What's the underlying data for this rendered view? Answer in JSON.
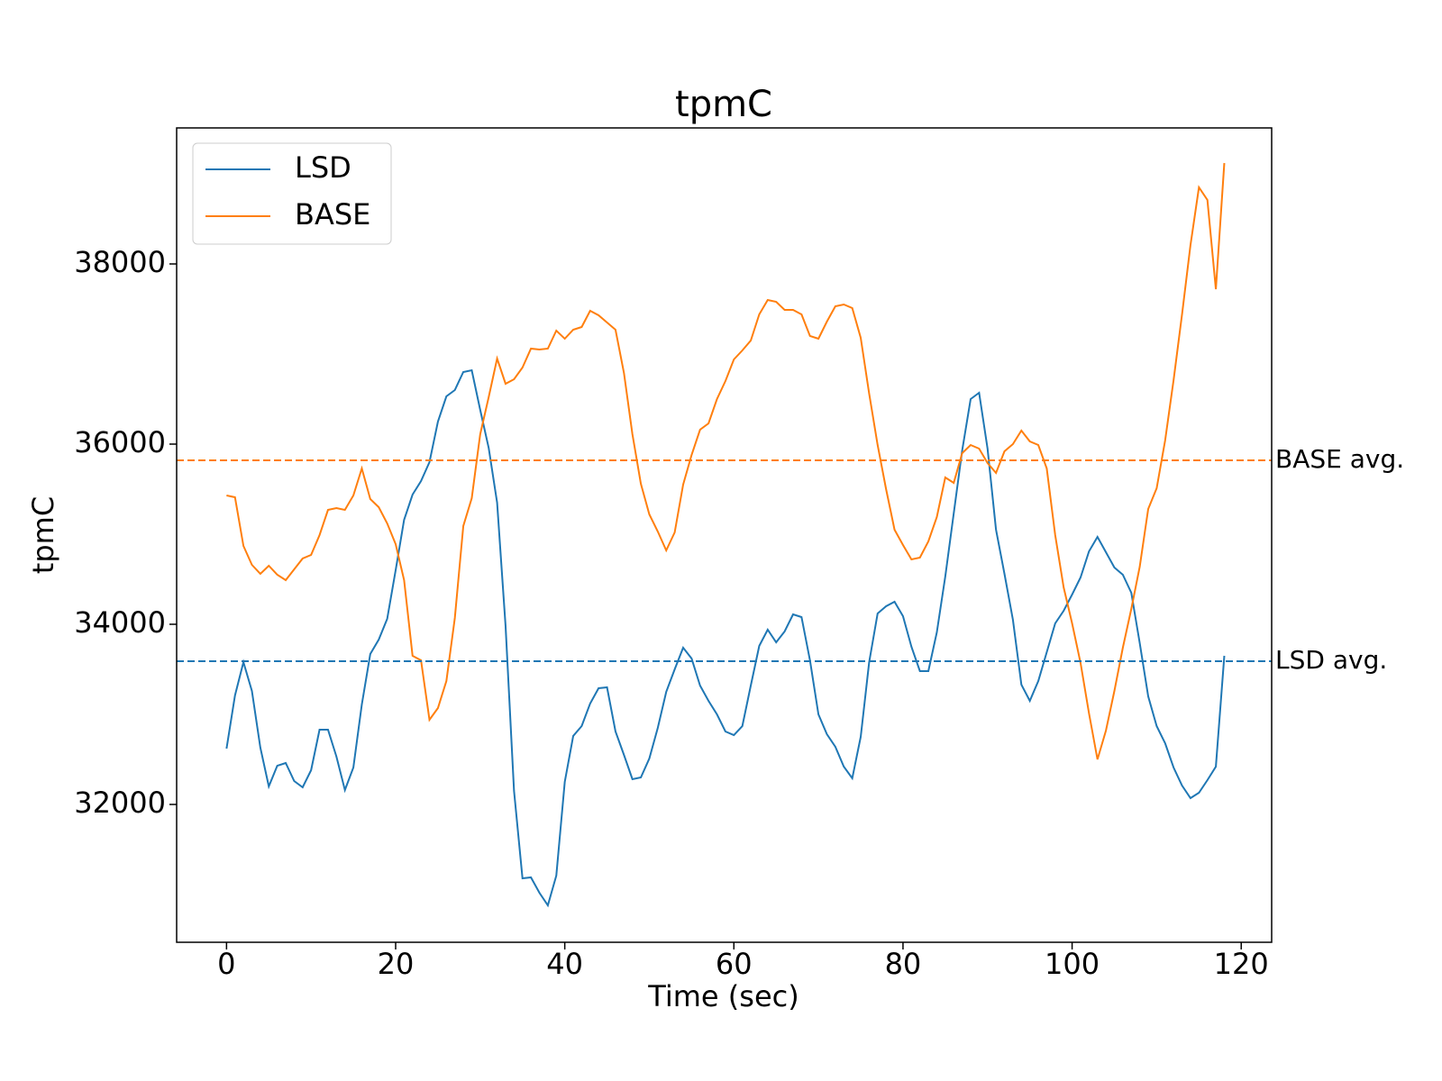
{
  "chart_data": {
    "type": "line",
    "title": "tpmC",
    "x_label": "Time (sec)",
    "y_label": "tpmC",
    "x": [
      0,
      1,
      2,
      3,
      4,
      5,
      6,
      7,
      8,
      9,
      10,
      11,
      12,
      13,
      14,
      15,
      16,
      17,
      18,
      19,
      20,
      21,
      22,
      23,
      24,
      25,
      26,
      27,
      28,
      29,
      30,
      31,
      32,
      33,
      34,
      35,
      36,
      37,
      38,
      39,
      40,
      41,
      42,
      43,
      44,
      45,
      46,
      47,
      48,
      49,
      50,
      51,
      52,
      53,
      54,
      55,
      56,
      57,
      58,
      59,
      60,
      61,
      62,
      63,
      64,
      65,
      66,
      67,
      68,
      69,
      70,
      71,
      72,
      73,
      74,
      75,
      76,
      77,
      78,
      79,
      80,
      81,
      82,
      83,
      84,
      85,
      86,
      87,
      88,
      89,
      90,
      91,
      92,
      93,
      94,
      95,
      96,
      97,
      98,
      99,
      100,
      101,
      102,
      103,
      104,
      105,
      106,
      107,
      108,
      109,
      110,
      111,
      112,
      113,
      114,
      115,
      116,
      117,
      118
    ],
    "series": [
      {
        "name": "LSD",
        "color": "#1f77b4",
        "values": [
          32620,
          33210,
          33580,
          33260,
          32630,
          32200,
          32430,
          32460,
          32260,
          32190,
          32380,
          32830,
          32830,
          32530,
          32160,
          32410,
          33110,
          33670,
          33830,
          34060,
          34600,
          35160,
          35440,
          35590,
          35800,
          36250,
          36530,
          36600,
          36800,
          36820,
          36380,
          35960,
          35350,
          33980,
          32150,
          31180,
          31190,
          31020,
          30880,
          31210,
          32250,
          32760,
          32870,
          33120,
          33290,
          33300,
          32810,
          32550,
          32280,
          32300,
          32510,
          32850,
          33250,
          33500,
          33740,
          33620,
          33320,
          33150,
          33000,
          32810,
          32770,
          32870,
          33320,
          33760,
          33940,
          33800,
          33920,
          34110,
          34080,
          33600,
          33000,
          32780,
          32640,
          32420,
          32290,
          32750,
          33580,
          34120,
          34200,
          34250,
          34090,
          33750,
          33480,
          33480,
          33910,
          34530,
          35230,
          35930,
          36500,
          36570,
          35950,
          35050,
          34560,
          34050,
          33330,
          33150,
          33370,
          33690,
          34010,
          34150,
          34330,
          34520,
          34810,
          34970,
          34800,
          34630,
          34550,
          34350,
          33790,
          33200,
          32870,
          32680,
          32410,
          32210,
          32070,
          32130,
          32270,
          32420,
          33650
        ]
      },
      {
        "name": "BASE",
        "color": "#ff7f0e",
        "values": [
          35430,
          35410,
          34870,
          34660,
          34560,
          34650,
          34550,
          34490,
          34610,
          34730,
          34770,
          34990,
          35270,
          35290,
          35270,
          35430,
          35730,
          35390,
          35300,
          35120,
          34890,
          34490,
          33650,
          33600,
          32940,
          33070,
          33370,
          34070,
          35090,
          35400,
          36110,
          36520,
          36950,
          36670,
          36720,
          36850,
          37060,
          37050,
          37060,
          37260,
          37170,
          37270,
          37300,
          37480,
          37430,
          37350,
          37270,
          36790,
          36110,
          35560,
          35220,
          35030,
          34820,
          35020,
          35550,
          35880,
          36160,
          36230,
          36500,
          36700,
          36940,
          37040,
          37150,
          37440,
          37600,
          37580,
          37490,
          37490,
          37440,
          37200,
          37170,
          37360,
          37530,
          37550,
          37510,
          37180,
          36560,
          35990,
          35500,
          35050,
          34880,
          34720,
          34740,
          34920,
          35190,
          35630,
          35570,
          35900,
          35990,
          35950,
          35790,
          35680,
          35920,
          36000,
          36150,
          36030,
          35990,
          35730,
          34990,
          34410,
          34010,
          33570,
          33010,
          32500,
          32820,
          33260,
          33740,
          34170,
          34640,
          35280,
          35510,
          36040,
          36710,
          37440,
          38210,
          38850,
          38710,
          37720,
          39120
        ]
      }
    ],
    "reference_lines": [
      {
        "label": "BASE avg.",
        "value": 35820,
        "color": "#ff7f0e"
      },
      {
        "label": "LSD avg.",
        "value": 33590,
        "color": "#1f77b4"
      }
    ],
    "xlim": [
      -5.9,
      123.6
    ],
    "ylim": [
      30470,
      39510
    ],
    "xticks": [
      0,
      20,
      40,
      60,
      80,
      100,
      120
    ],
    "yticks": [
      32000,
      34000,
      36000,
      38000
    ],
    "legend": "upper left"
  }
}
